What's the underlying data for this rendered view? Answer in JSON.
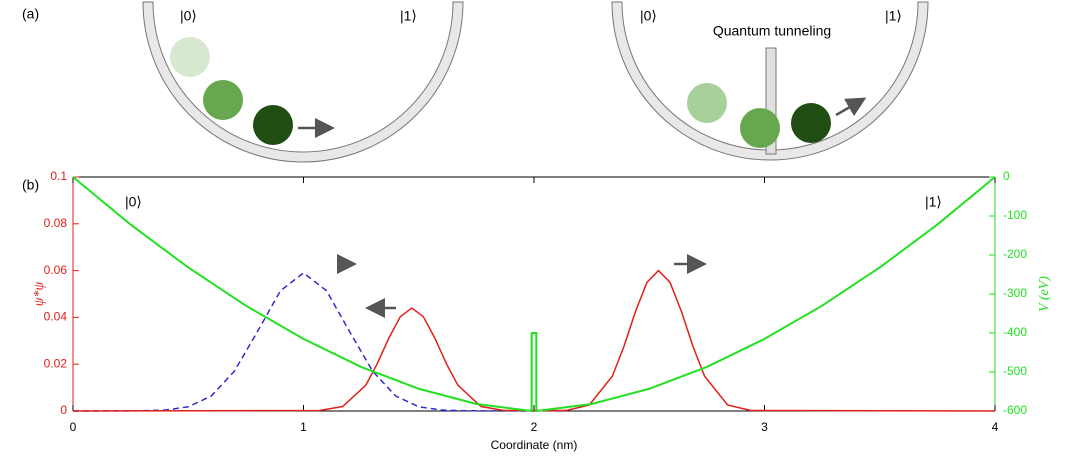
{
  "panel_a": {
    "label": "(a)",
    "wells": [
      {
        "left_state": "|0⟩",
        "right_state": "|1⟩"
      },
      {
        "left_state": "|0⟩",
        "right_state": "|1⟩",
        "caption": "Quantum tunneling"
      }
    ]
  },
  "chart_data": {
    "type": "line",
    "panel_label": "(b)",
    "xlabel": "Coordinate (nm)",
    "ylabel": "ψ*ψ",
    "y2label": "V (eV)",
    "annotations": [
      "|0⟩",
      "|1⟩"
    ],
    "xlim": [
      0,
      4
    ],
    "xticks": [
      0,
      1,
      2,
      3,
      4
    ],
    "ylim": [
      0,
      0.1
    ],
    "yticks": [
      0,
      0.02,
      0.04,
      0.06,
      0.08,
      0.1
    ],
    "y2lim": [
      -600,
      0
    ],
    "y2ticks": [
      -600,
      -500,
      -400,
      -300,
      -200,
      -100,
      0
    ],
    "ycolor": "#e0201a",
    "y2color": "#22e022",
    "series": [
      {
        "color": "#2b2bd0",
        "linestyle": "dashed",
        "x": [
          0,
          0.3,
          0.4,
          0.5,
          0.6,
          0.7,
          0.8,
          0.9,
          1.0,
          1.1,
          1.2,
          1.3,
          1.4,
          1.5,
          1.6,
          1.7,
          2.0
        ],
        "values": [
          0,
          0.0001,
          0.0004,
          0.0018,
          0.0064,
          0.017,
          0.0339,
          0.0514,
          0.059,
          0.0514,
          0.0339,
          0.017,
          0.0064,
          0.0018,
          0.0004,
          0.0001,
          0
        ]
      },
      {
        "color": "#e0201a",
        "linestyle": "solid",
        "x": [
          0,
          1.07,
          1.17,
          1.27,
          1.32,
          1.37,
          1.42,
          1.47,
          1.52,
          1.57,
          1.62,
          1.67,
          1.77,
          1.87,
          2.14,
          2.24,
          2.34,
          2.39,
          2.44,
          2.49,
          2.54,
          2.59,
          2.64,
          2.69,
          2.74,
          2.84,
          2.94,
          4
        ],
        "values": [
          0,
          0.0002,
          0.0019,
          0.011,
          0.0202,
          0.0311,
          0.0403,
          0.044,
          0.0403,
          0.0311,
          0.0202,
          0.011,
          0.0019,
          0.0002,
          0.0002,
          0.0026,
          0.0149,
          0.0275,
          0.0424,
          0.055,
          0.06,
          0.055,
          0.0424,
          0.0275,
          0.0149,
          0.0026,
          0.0002,
          0
        ]
      },
      {
        "color": "#22e022",
        "linestyle": "solid",
        "axis": "y2",
        "x": [
          0,
          0.25,
          0.5,
          0.75,
          1.0,
          1.25,
          1.5,
          1.75,
          1.99,
          1.99,
          2.01,
          2.01,
          2.25,
          2.5,
          2.75,
          3.0,
          3.25,
          3.5,
          3.75,
          4
        ],
        "values": [
          0,
          -122,
          -232,
          -330,
          -415,
          -487,
          -543,
          -582,
          -600,
          -400,
          -400,
          -600,
          -582,
          -543,
          -487,
          -415,
          -330,
          -232,
          -122,
          0
        ]
      }
    ]
  }
}
